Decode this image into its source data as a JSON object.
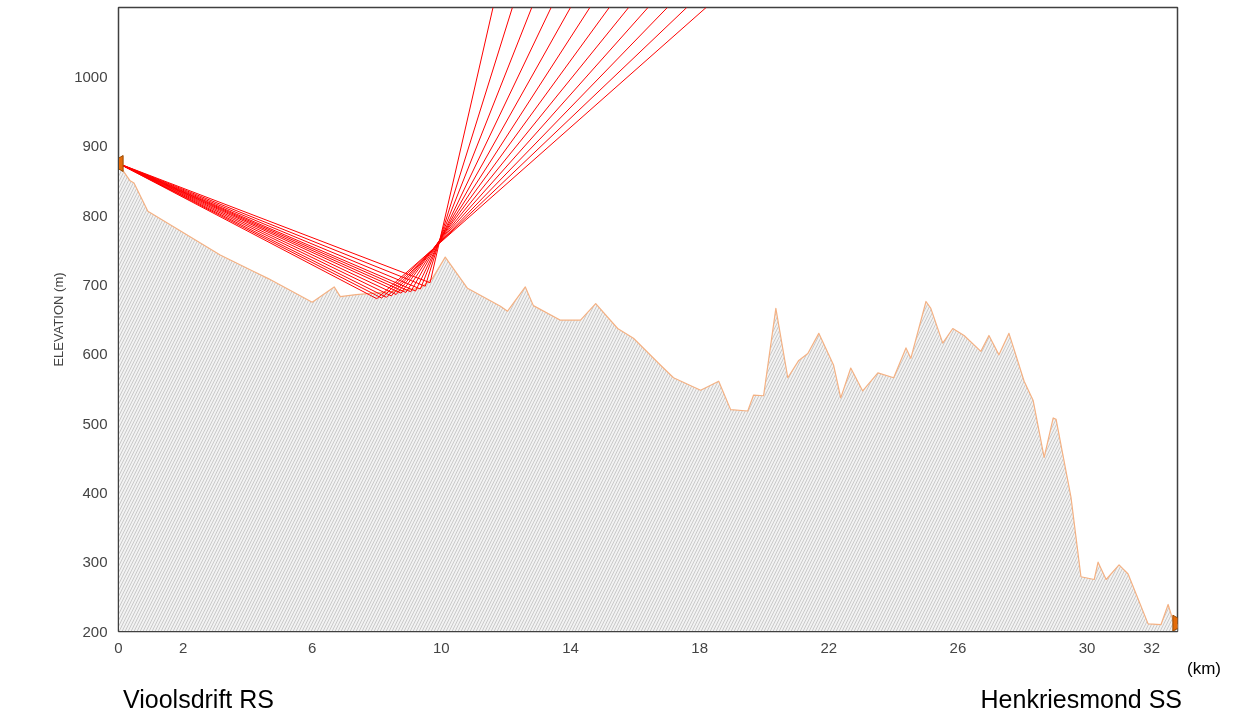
{
  "chart_data": {
    "type": "area",
    "xlabel": "(km)",
    "ylabel": "ELEVATION (m)",
    "annotations": [
      "Vioolsdrift RS",
      "Henkriesmond SS"
    ],
    "xlim": [
      0,
      32.8
    ],
    "ylim": [
      200,
      1100
    ],
    "xticks": [
      0,
      2,
      6,
      10,
      14,
      18,
      22,
      26,
      30,
      32
    ],
    "yticks": [
      200,
      300,
      400,
      500,
      600,
      700,
      800,
      900,
      1000
    ],
    "grid": false,
    "series": [
      {
        "color": "#f4b183",
        "x": [
          0,
          0.36,
          0.48,
          0.91,
          1.91,
          3.15,
          4.64,
          6.0,
          6.68,
          6.87,
          7.36,
          8.42,
          9.34,
          9.72,
          10.12,
          10.81,
          11.83,
          12.05,
          12.6,
          12.85,
          13.69,
          14.31,
          14.78,
          15.46,
          15.95,
          16.79,
          17.19,
          18.03,
          18.59,
          18.96,
          19.49,
          19.67,
          19.98,
          20.36,
          20.73,
          21.07,
          21.35,
          21.69,
          22.15,
          22.37,
          22.68,
          23.05,
          23.52,
          24.01,
          24.39,
          24.54,
          25.01,
          25.16,
          25.53,
          25.84,
          26.19,
          26.71,
          26.96,
          27.27,
          27.58,
          28.05,
          28.33,
          28.67,
          28.95,
          29.04,
          29.5,
          29.81,
          30.22,
          30.34,
          30.59,
          30.99,
          31.27,
          31.89,
          32.29,
          32.51,
          32.7,
          32.8
        ],
        "values": [
          874,
          850,
          847,
          806,
          778,
          743,
          709,
          675,
          697,
          683,
          686,
          690,
          695,
          709,
          740,
          695,
          669,
          662,
          697,
          670,
          649,
          649,
          673,
          637,
          623,
          584,
          566,
          548,
          561,
          520,
          518,
          541,
          540,
          666,
          566,
          591,
          601,
          630,
          584,
          537,
          580,
          547,
          573,
          566,
          609,
          594,
          676,
          666,
          616,
          637,
          627,
          604,
          627,
          599,
          630,
          561,
          533,
          451,
          508,
          506,
          394,
          279,
          275,
          300,
          275,
          296,
          283,
          211,
          210,
          239,
          210,
          210
        ]
      },
      {
        "type": "line",
        "color": "#ff0000",
        "x": [
          0,
          8.0,
          18.2
        ],
        "values": [
          875,
          680,
          1100
        ]
      },
      {
        "type": "line",
        "color": "#ff0000",
        "x": [
          0,
          8.15,
          17.6
        ],
        "values": [
          875,
          681,
          1100
        ]
      },
      {
        "type": "line",
        "color": "#ff0000",
        "x": [
          0,
          8.3,
          17.0
        ],
        "values": [
          875,
          682,
          1100
        ]
      },
      {
        "type": "line",
        "color": "#ff0000",
        "x": [
          0,
          8.45,
          16.4
        ],
        "values": [
          875,
          684,
          1100
        ]
      },
      {
        "type": "line",
        "color": "#ff0000",
        "x": [
          0,
          8.6,
          15.8
        ],
        "values": [
          875,
          686,
          1100
        ]
      },
      {
        "type": "line",
        "color": "#ff0000",
        "x": [
          0,
          8.75,
          15.2
        ],
        "values": [
          875,
          688,
          1100
        ]
      },
      {
        "type": "line",
        "color": "#ff0000",
        "x": [
          0,
          8.9,
          14.6
        ],
        "values": [
          875,
          689,
          1100
        ]
      },
      {
        "type": "line",
        "color": "#ff0000",
        "x": [
          0,
          9.05,
          14.0
        ],
        "values": [
          875,
          690,
          1100
        ]
      },
      {
        "type": "line",
        "color": "#ff0000",
        "x": [
          0,
          9.2,
          13.4
        ],
        "values": [
          875,
          691,
          1100
        ]
      },
      {
        "type": "line",
        "color": "#ff0000",
        "x": [
          0,
          9.35,
          12.8
        ],
        "values": [
          875,
          694,
          1100
        ]
      },
      {
        "type": "line",
        "color": "#ff0000",
        "x": [
          0,
          9.5,
          12.2
        ],
        "values": [
          875,
          698,
          1100
        ]
      },
      {
        "type": "line",
        "color": "#ff0000",
        "x": [
          0,
          9.65,
          11.6
        ],
        "values": [
          875,
          703,
          1100
        ]
      },
      {
        "type": "scatter",
        "marker": "triangle",
        "color": "#e46c0a",
        "x": [
          0,
          32.8
        ],
        "values": [
          875,
          212
        ]
      }
    ]
  }
}
